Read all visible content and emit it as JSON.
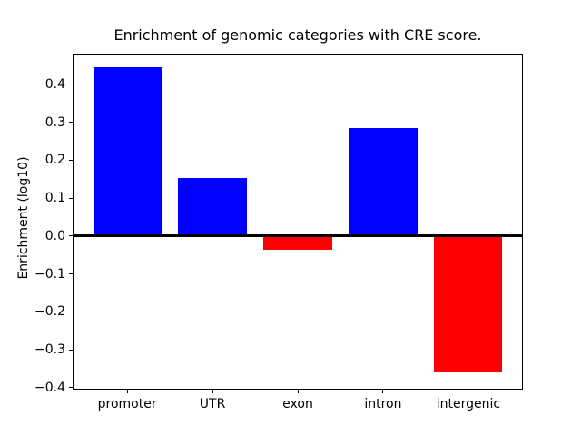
{
  "figure": {
    "title": "Enrichment of genomic categories with CRE score.",
    "ylabel": "Enrichment (log10)"
  },
  "chart_data": {
    "type": "bar",
    "title": "Enrichment of genomic categories with CRE score.",
    "xlabel": "",
    "ylabel": "Enrichment (log10)",
    "categories": [
      "promoter",
      "UTR",
      "exon",
      "intron",
      "intergenic"
    ],
    "values": [
      0.445,
      0.153,
      -0.037,
      0.285,
      -0.358
    ],
    "bar_colors": [
      "#0000ff",
      "#0000ff",
      "#ff0000",
      "#0000ff",
      "#ff0000"
    ],
    "positive_color": "#0000ff",
    "negative_color": "#ff0000",
    "yticks": [
      0.4,
      0.3,
      0.2,
      0.1,
      0.0,
      -0.1,
      -0.2,
      -0.3,
      -0.4
    ],
    "ytick_labels": [
      "0.4",
      "0.3",
      "0.2",
      "0.1",
      "0.0",
      "−0.1",
      "−0.2",
      "−0.3",
      "−0.4"
    ],
    "ylim": [
      -0.405,
      0.479
    ],
    "bar_width_fraction": 0.8,
    "grid": false,
    "zero_line": true,
    "legend_position": "none"
  }
}
